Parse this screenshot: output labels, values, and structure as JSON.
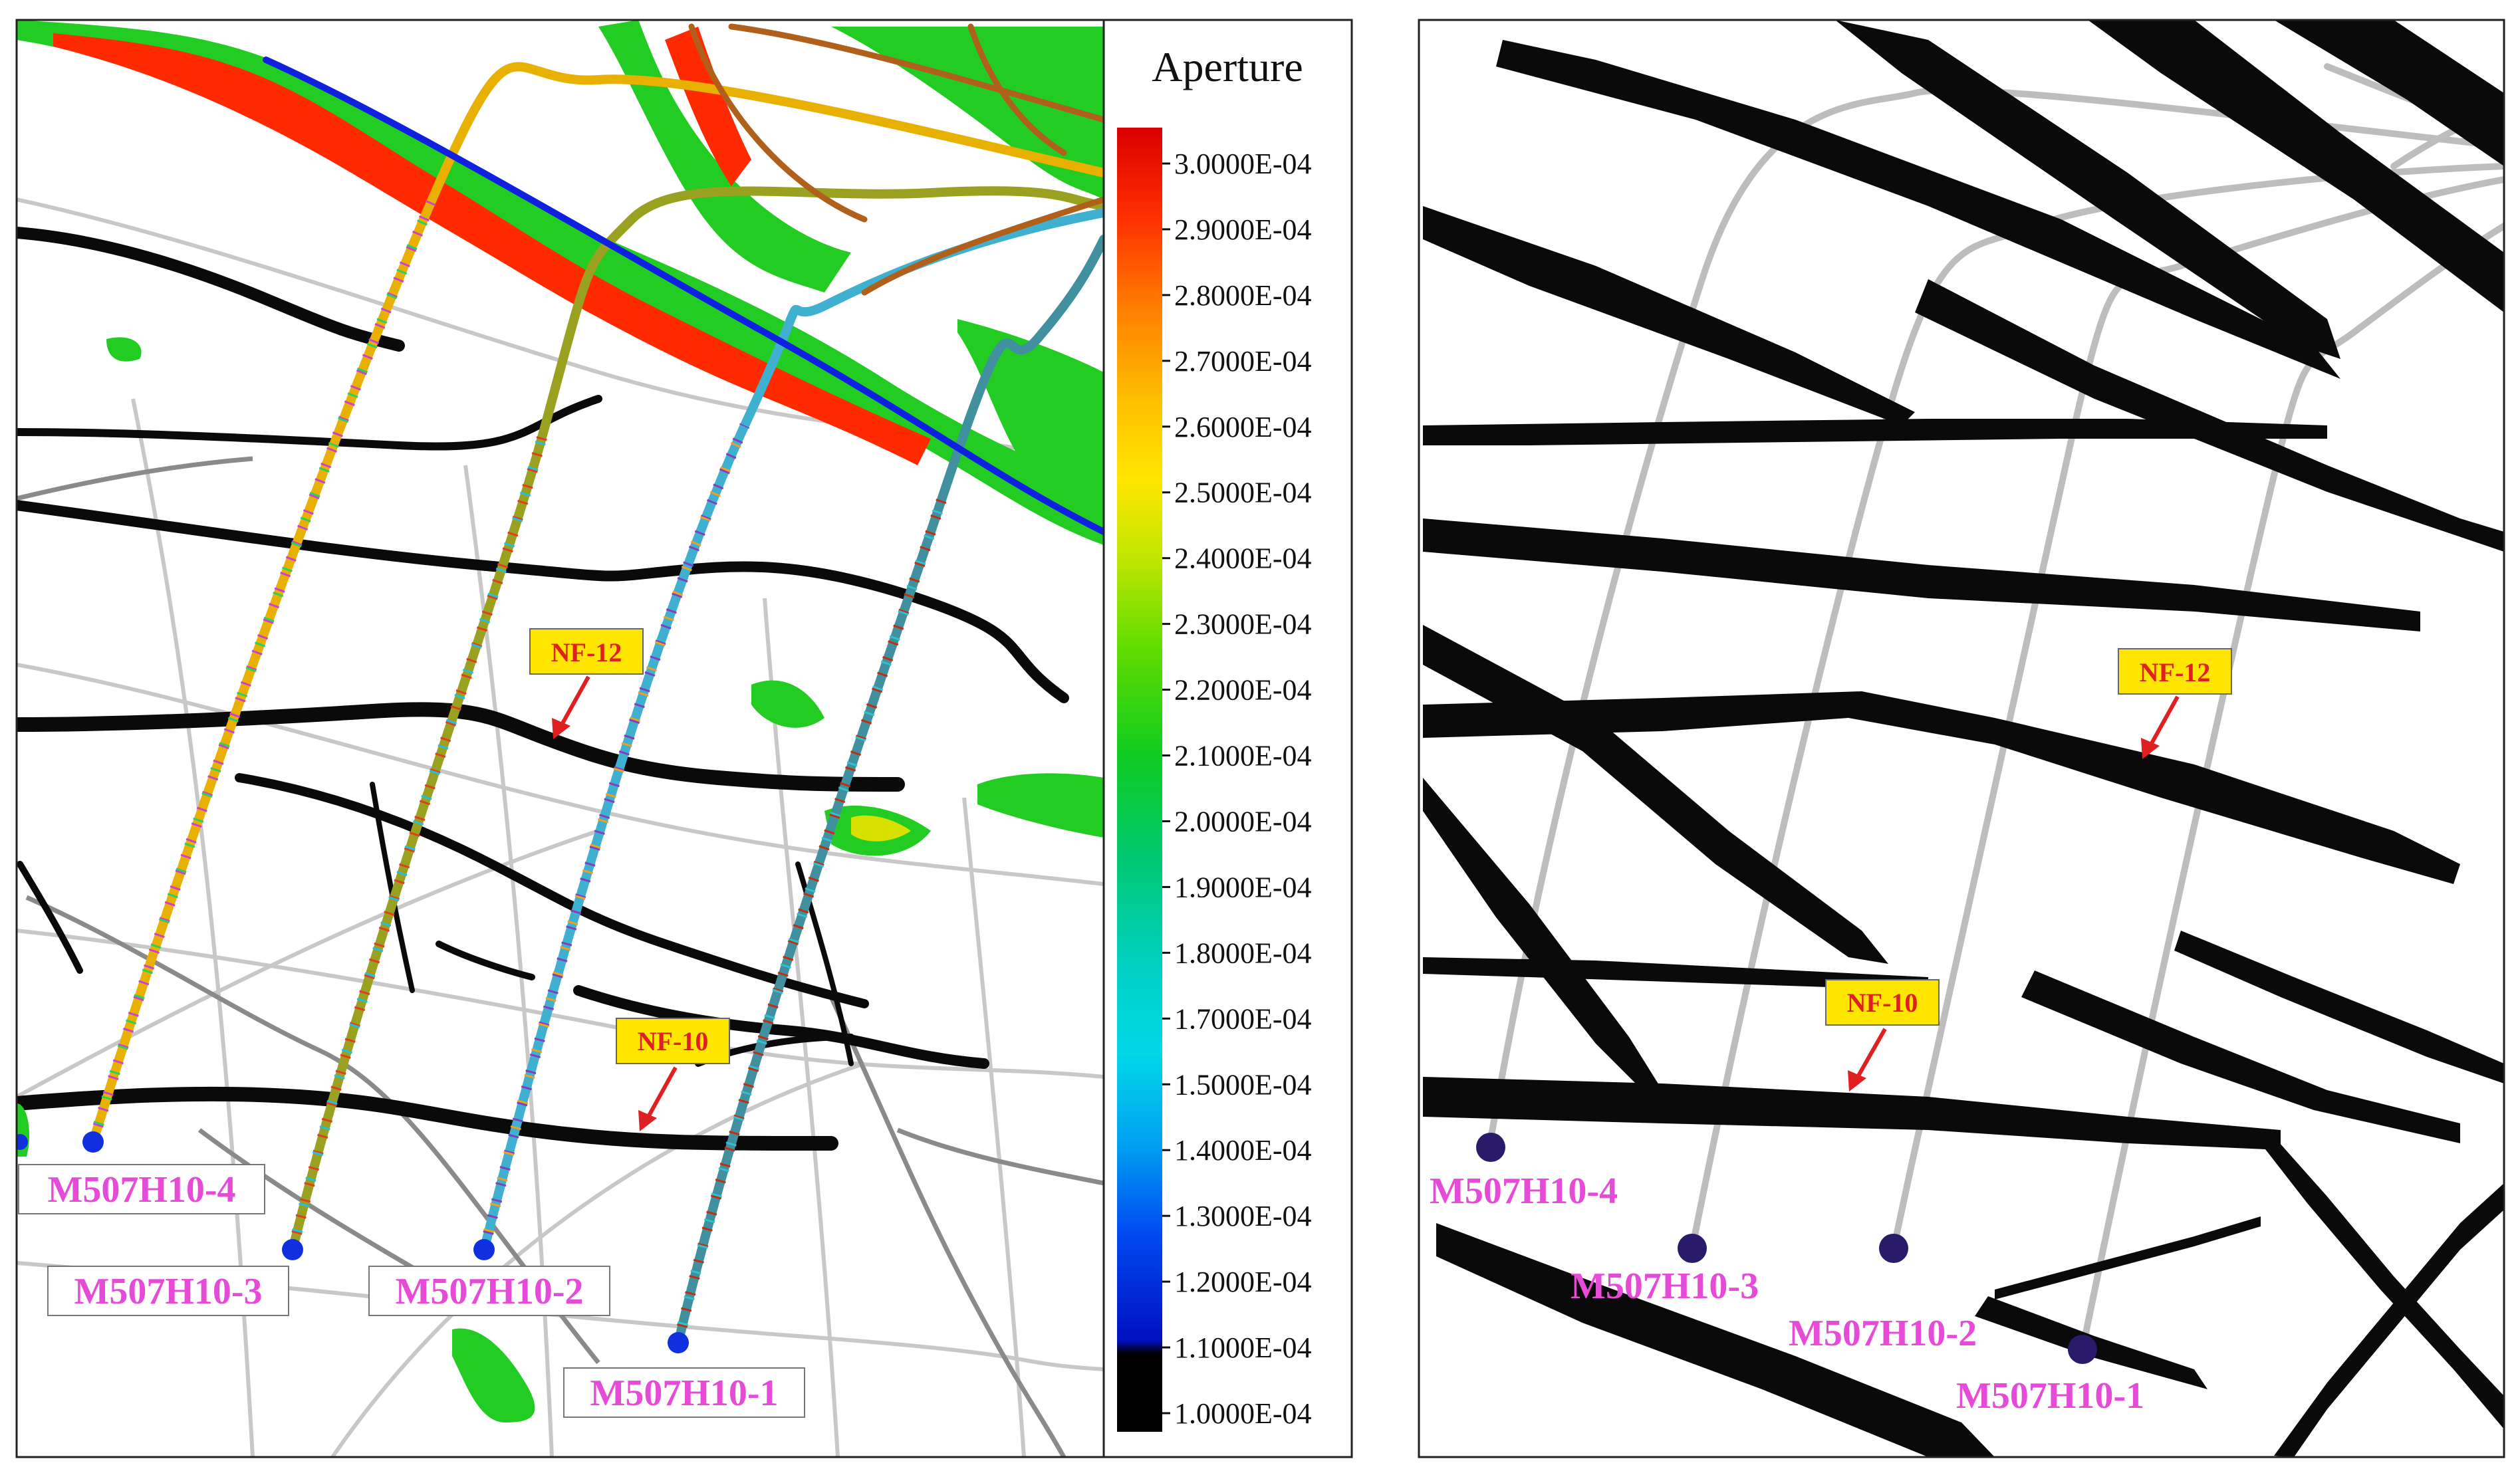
{
  "left_panel": {
    "colorbar": {
      "title": "Aperture",
      "ticks": [
        "3.0000E-04",
        "2.9000E-04",
        "2.8000E-04",
        "2.7000E-04",
        "2.6000E-04",
        "2.5000E-04",
        "2.4000E-04",
        "2.3000E-04",
        "2.2000E-04",
        "2.1000E-04",
        "2.0000E-04",
        "1.9000E-04",
        "1.8000E-04",
        "1.7000E-04",
        "1.5000E-04",
        "1.4000E-04",
        "1.3000E-04",
        "1.2000E-04",
        "1.1000E-04",
        "1.0000E-04"
      ],
      "colors": [
        "#d80000",
        "#ff2a00",
        "#ff7a00",
        "#ffb300",
        "#ffe000",
        "#c8e600",
        "#7ee000",
        "#2fd000",
        "#00c83a",
        "#00c89a",
        "#00d8d8",
        "#00a8f0",
        "#0050f0",
        "#0010c0",
        "#000000"
      ]
    },
    "wells": [
      {
        "name": "M507H10-4"
      },
      {
        "name": "M507H10-3"
      },
      {
        "name": "M507H10-2"
      },
      {
        "name": "M507H10-1"
      }
    ],
    "fractures": [
      {
        "name": "NF-12"
      },
      {
        "name": "NF-10"
      }
    ]
  },
  "right_panel": {
    "wells": [
      {
        "name": "M507H10-4"
      },
      {
        "name": "M507H10-3"
      },
      {
        "name": "M507H10-2"
      },
      {
        "name": "M507H10-1"
      }
    ],
    "fractures": [
      {
        "name": "NF-12"
      },
      {
        "name": "NF-10"
      }
    ]
  },
  "colors": {
    "well_label": "#e64bd8",
    "fracture_label_bg": "#ffe600",
    "fracture_label_text": "#e02020",
    "arrow": "#e02020",
    "well_head_left": "#1030e0",
    "well_head_right": "#2a1a6a"
  }
}
